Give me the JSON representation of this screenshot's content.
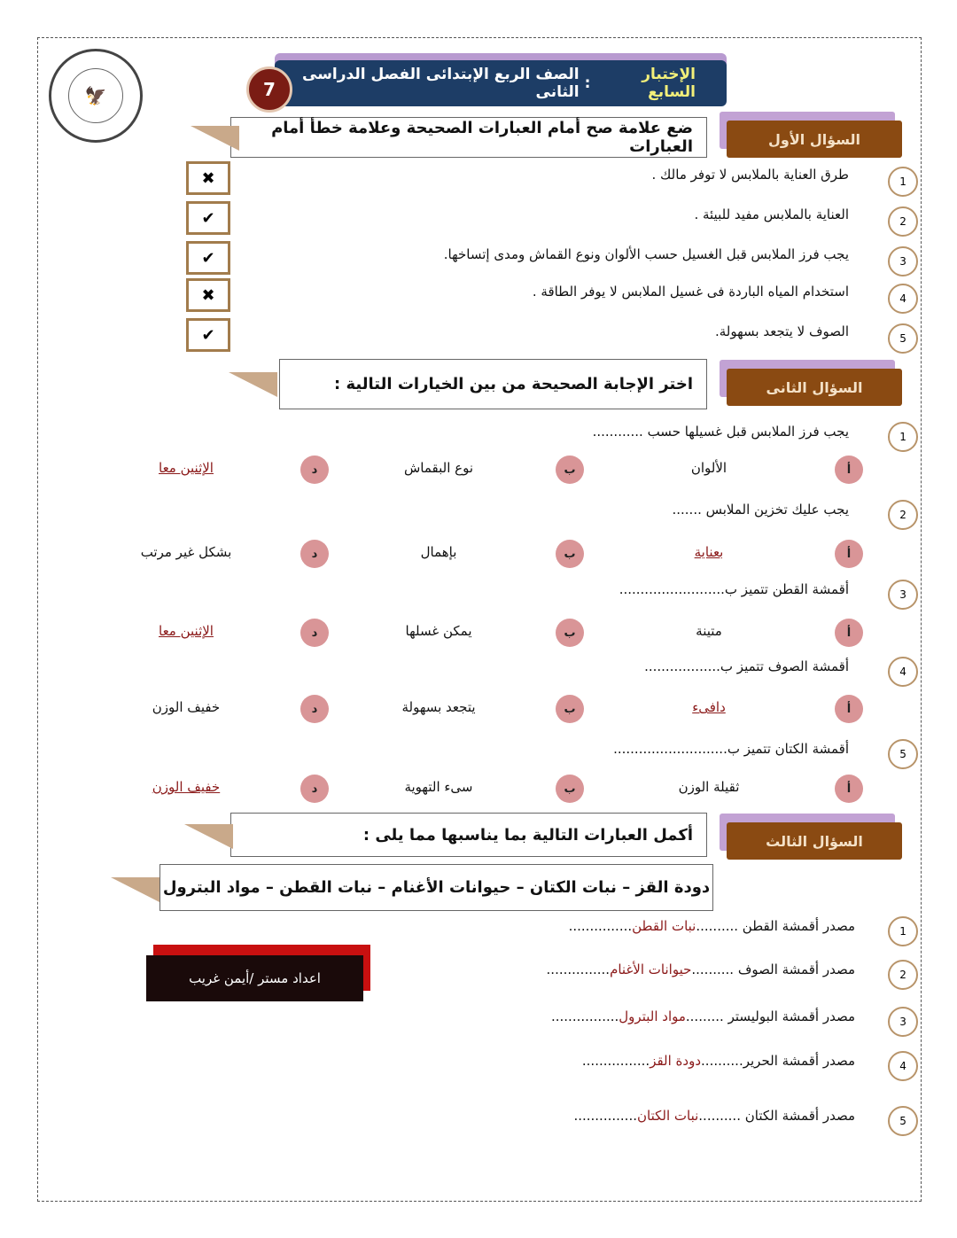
{
  "header": {
    "logo_text": "MINISTRY OF EDUCATION AND TECHNICAL EDUCATION",
    "test_label": "الإختبار السابع",
    "separator": ":",
    "title": "الصف الربع الإبتدائى الفصل الدراسى الثانى",
    "number": "7"
  },
  "q1": {
    "tab": "السؤال الأول",
    "instruction": "ضع علامة صح أمام العبارات الصحيحة وعلامة خطأ أمام العبارات",
    "items": [
      {
        "n": "1",
        "text": "طرق العناية بالملابس لا توفر مالك .",
        "mark": "✖"
      },
      {
        "n": "2",
        "text": "العناية بالملابس مفيد  للبيئة .",
        "mark": "✔"
      },
      {
        "n": "3",
        "text": "يجب فرز الملابس قبل الغسيل حسب الألوان ونوع القماش ومدى إتساخها.",
        "mark": "✔"
      },
      {
        "n": "4",
        "text": "استخدام المياه الباردة فى غسيل الملابس لا يوفر الطاقة .",
        "mark": "✖"
      },
      {
        "n": "5",
        "text": "الصوف لا يتجعد بسهولة.",
        "mark": "✔"
      }
    ]
  },
  "q2": {
    "tab": "السؤال الثانى",
    "instruction": "اختر الإجابة الصحيحة من بين الخيارات التالية :",
    "letters": [
      "أ",
      "ب",
      "د"
    ],
    "items": [
      {
        "n": "1",
        "text": "يجب فرز الملابس قبل غسيلها حسب ............",
        "options": [
          "الألوان",
          "نوع البقماش",
          "الإثنين معا"
        ],
        "answer": 2
      },
      {
        "n": "2",
        "text": "يجب عليك تخزين الملابس .......",
        "options": [
          "بعناية",
          "بإهمال",
          "بشكل غير مرتب"
        ],
        "answer": 0
      },
      {
        "n": "3",
        "text": "أقمشة القطن تتميز ب.........................",
        "options": [
          "متينة",
          "يمكن غسلها",
          "الإثنين معا"
        ],
        "answer": 2
      },
      {
        "n": "4",
        "text": "أقمشة الصوف تتميز ب..................",
        "options": [
          "دافىء",
          "يتجعد بسهولة",
          "خفيف الوزن"
        ],
        "answer": 0
      },
      {
        "n": "5",
        "text": "أقمشة الكتان تتميز ب...........................",
        "options": [
          "ثقيلة الوزن",
          "سىء التهوية",
          "خفيف الوزن"
        ],
        "answer": 2
      }
    ]
  },
  "q3": {
    "tab": "السؤال الثالث",
    "instruction": "أكمل العبارات التالية بما يناسبها مما يلى :",
    "word_bank": "دودة القز – نبات الكتان – حيوانات الأغنام – نبات القطن – مواد البترول",
    "items": [
      {
        "n": "1",
        "prefix": "مصدر أقمشة القطن ..........",
        "answer": "نبات القطن",
        "suffix": "..............."
      },
      {
        "n": "2",
        "prefix": "مصدر أقمشة الصوف ..........",
        "answer": "حيوانات الأغنام",
        "suffix": "..............."
      },
      {
        "n": "3",
        "prefix": "مصدر أقمشة البوليستر .........",
        "answer": "مواد البترول",
        "suffix": "................"
      },
      {
        "n": "4",
        "prefix": "مصدر أقمشة الحرير..........",
        "answer": "دودة القز",
        "suffix": "................"
      },
      {
        "n": "5",
        "prefix": "مصدر أقمشة الكتان ..........",
        "answer": "نبات الكتان",
        "suffix": "..............."
      }
    ]
  },
  "author": "اعداد مستر /أيمن غريب"
}
